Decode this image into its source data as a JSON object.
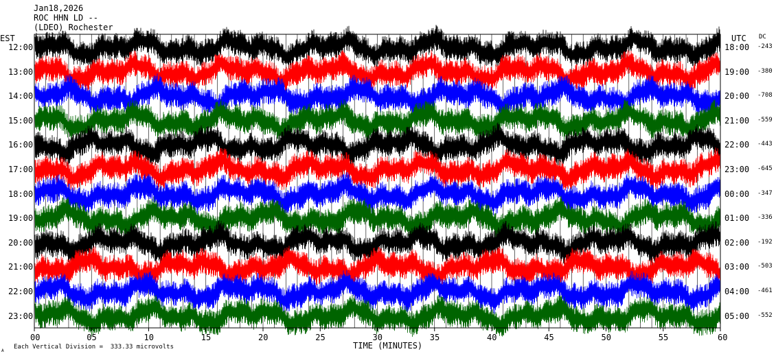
{
  "header": {
    "date": "Jan18,2026",
    "station": "ROC HHN LD --",
    "location": "(LDEO) Rochester"
  },
  "left_axis_title": "EST",
  "right_axis_title": "UTC",
  "dc_title": "DC",
  "footer": {
    "scale_note": "Each Vertical Division =  333.33 microvolts",
    "corner_mark": "A"
  },
  "chart_data": {
    "type": "line",
    "title": "",
    "xlabel": "TIME (MINUTES)",
    "ylabel": "",
    "xlim": [
      0,
      60
    ],
    "x_ticks": [
      0,
      5,
      10,
      15,
      20,
      25,
      30,
      35,
      40,
      45,
      50,
      55,
      60
    ],
    "x_tick_labels": [
      "00",
      "05",
      "10",
      "15",
      "20",
      "25",
      "30",
      "35",
      "40",
      "45",
      "50",
      "55",
      "60"
    ],
    "grid": "vertical-every-minute",
    "colors_cycle": [
      "#000000",
      "#ff0000",
      "#0000ff",
      "#006400"
    ],
    "rows": [
      {
        "est": "12:00",
        "utc": "18:00",
        "dc": "-243",
        "color": "#000000"
      },
      {
        "est": "13:00",
        "utc": "19:00",
        "dc": "-380",
        "color": "#ff0000"
      },
      {
        "est": "14:00",
        "utc": "20:00",
        "dc": "-708",
        "color": "#0000ff"
      },
      {
        "est": "15:00",
        "utc": "21:00",
        "dc": "-559",
        "color": "#006400"
      },
      {
        "est": "16:00",
        "utc": "22:00",
        "dc": "-443",
        "color": "#000000"
      },
      {
        "est": "17:00",
        "utc": "23:00",
        "dc": "-645",
        "color": "#ff0000"
      },
      {
        "est": "18:00",
        "utc": "00:00",
        "dc": "-347",
        "color": "#0000ff"
      },
      {
        "est": "19:00",
        "utc": "01:00",
        "dc": "-336",
        "color": "#006400"
      },
      {
        "est": "20:00",
        "utc": "02:00",
        "dc": "-192",
        "color": "#000000"
      },
      {
        "est": "21:00",
        "utc": "03:00",
        "dc": "-503",
        "color": "#ff0000"
      },
      {
        "est": "22:00",
        "utc": "04:00",
        "dc": "-461",
        "color": "#0000ff"
      },
      {
        "est": "23:00",
        "utc": "05:00",
        "dc": "-552",
        "color": "#006400"
      }
    ]
  }
}
